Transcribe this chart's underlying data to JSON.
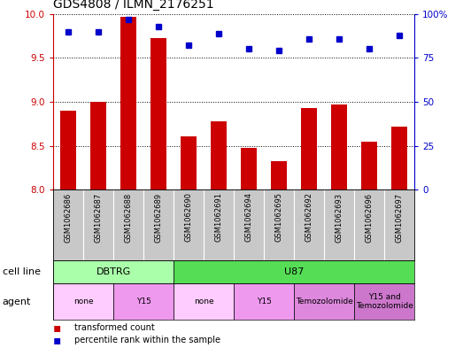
{
  "title": "GDS4808 / ILMN_2176251",
  "samples": [
    "GSM1062686",
    "GSM1062687",
    "GSM1062688",
    "GSM1062689",
    "GSM1062690",
    "GSM1062691",
    "GSM1062694",
    "GSM1062695",
    "GSM1062692",
    "GSM1062693",
    "GSM1062696",
    "GSM1062697"
  ],
  "transformed_counts": [
    8.9,
    9.0,
    9.97,
    9.73,
    8.61,
    8.78,
    8.48,
    8.32,
    8.93,
    8.97,
    8.55,
    8.72
  ],
  "percentile_ranks": [
    90,
    90,
    97,
    93,
    82,
    89,
    80,
    79,
    86,
    86,
    80,
    88
  ],
  "ylim_left": [
    8.0,
    10.0
  ],
  "ylim_right": [
    0,
    100
  ],
  "yticks_left": [
    8.0,
    8.5,
    9.0,
    9.5,
    10.0
  ],
  "yticks_right": [
    0,
    25,
    50,
    75,
    100
  ],
  "bar_color": "#cc0000",
  "dot_color": "#0000cc",
  "sample_bg_color": "#c8c8c8",
  "cell_line_groups": [
    {
      "label": "DBTRG",
      "start": 0,
      "end": 3,
      "color": "#aaffaa"
    },
    {
      "label": "U87",
      "start": 4,
      "end": 11,
      "color": "#55dd55"
    }
  ],
  "agent_groups": [
    {
      "label": "none",
      "start": 0,
      "end": 1,
      "color": "#ffccff"
    },
    {
      "label": "Y15",
      "start": 2,
      "end": 3,
      "color": "#ee99ee"
    },
    {
      "label": "none",
      "start": 4,
      "end": 5,
      "color": "#ffccff"
    },
    {
      "label": "Y15",
      "start": 6,
      "end": 7,
      "color": "#ee99ee"
    },
    {
      "label": "Temozolomide",
      "start": 8,
      "end": 9,
      "color": "#dd88dd"
    },
    {
      "label": "Y15 and\nTemozolomide",
      "start": 10,
      "end": 11,
      "color": "#cc77cc"
    }
  ],
  "background_color": "#ffffff",
  "left_axis_color": "#cc0000",
  "right_axis_color": "#0000cc",
  "legend_items": [
    {
      "label": "transformed count",
      "color": "#cc0000"
    },
    {
      "label": "percentile rank within the sample",
      "color": "#0000cc"
    }
  ]
}
